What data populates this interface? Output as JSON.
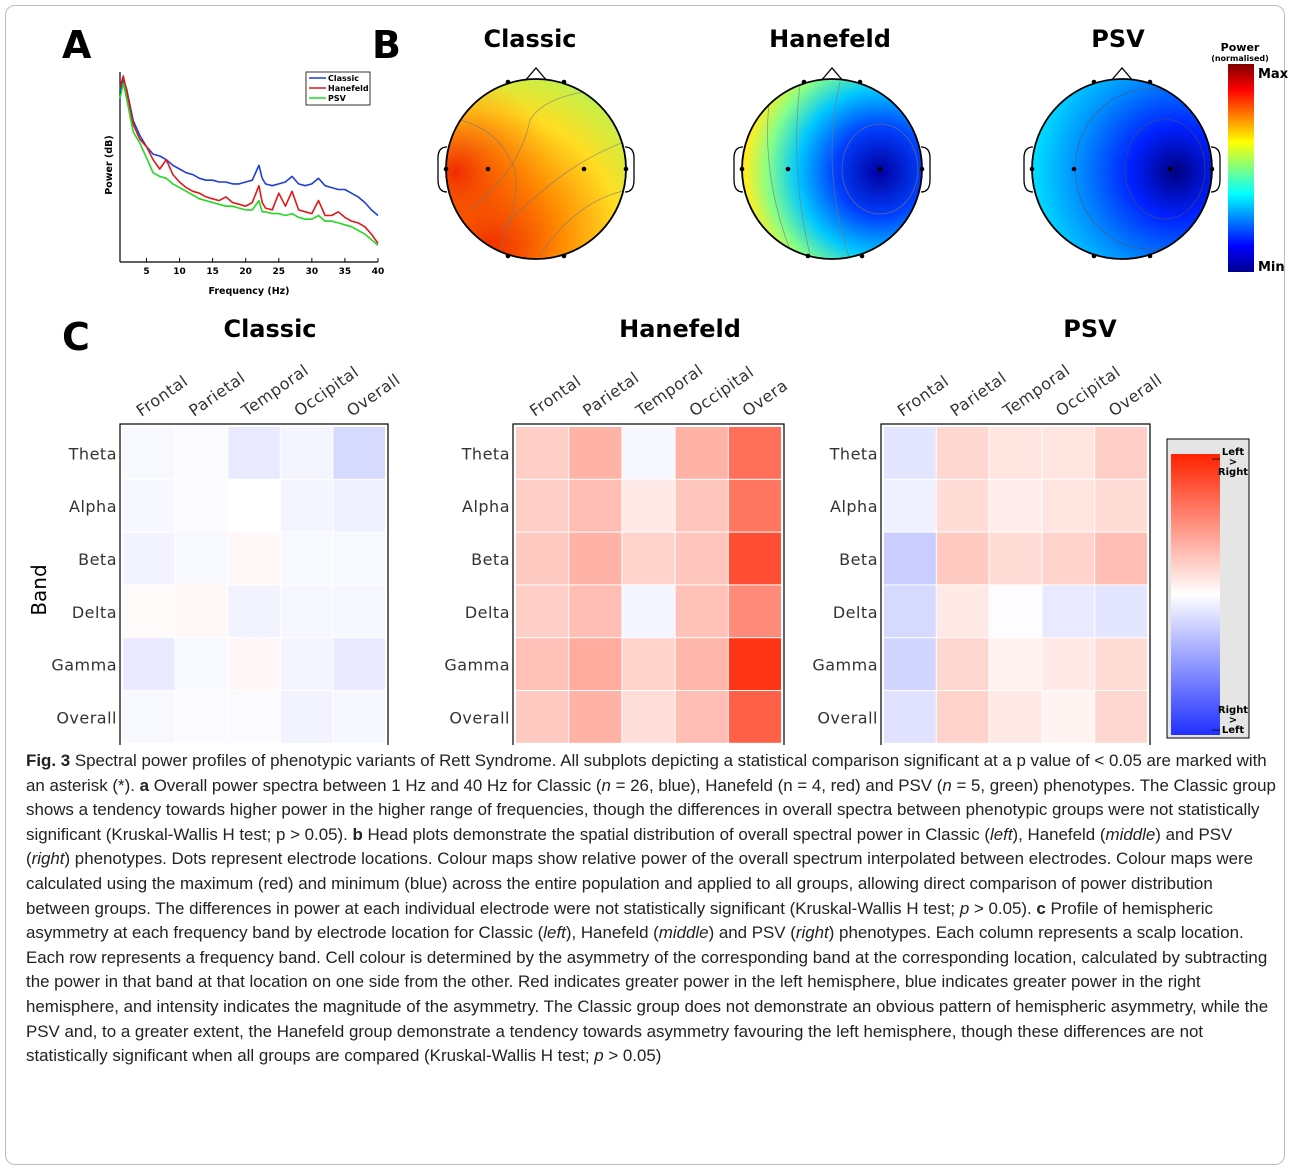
{
  "panel_letters": {
    "A": "A",
    "B": "B",
    "C": "C"
  },
  "spectrum": {
    "ylabel": "Power (dB)",
    "xlabel": "Frequency (Hz)",
    "x_ticks": [
      "5",
      "10",
      "15",
      "20",
      "25",
      "30",
      "35",
      "40"
    ],
    "legend": [
      "Classic",
      "Hanefeld",
      "PSV"
    ],
    "colors": {
      "Classic": "#1f3fd6",
      "Hanefeld": "#e01818",
      "PSV": "#22d822"
    }
  },
  "topo": {
    "titles": [
      "Classic",
      "Hanefeld",
      "PSV"
    ],
    "colorbar_title": "Power",
    "colorbar_subtitle": "(normalised)",
    "colorbar_max": "Max",
    "colorbar_min": "Min"
  },
  "heatmap_text": {
    "titles": [
      "Classic",
      "Hanefeld",
      "PSV"
    ],
    "band_axis_label": "Band",
    "colorbar_top": [
      "Left",
      ">",
      "Right"
    ],
    "colorbar_bottom": [
      "Right",
      ">",
      "Left"
    ]
  },
  "chart_data": [
    {
      "type": "line",
      "panel": "A",
      "xlabel": "Frequency (Hz)",
      "ylabel": "Power (dB)",
      "xlim": [
        1,
        40
      ],
      "legend_position": "top-right",
      "x": [
        1,
        1.5,
        2,
        3,
        4,
        5,
        6,
        7,
        8,
        9,
        10,
        11,
        12,
        13,
        14,
        15,
        16,
        17,
        18,
        19,
        20,
        21,
        22,
        22.5,
        23,
        24,
        25,
        26,
        27,
        28,
        29,
        30,
        31,
        32,
        33,
        34,
        35,
        36,
        37,
        38,
        39,
        40
      ],
      "series": [
        {
          "name": "Classic",
          "values": [
            0.92,
            0.98,
            0.93,
            0.76,
            0.68,
            0.62,
            0.58,
            0.57,
            0.55,
            0.52,
            0.5,
            0.48,
            0.47,
            0.45,
            0.44,
            0.44,
            0.43,
            0.43,
            0.42,
            0.42,
            0.43,
            0.44,
            0.52,
            0.45,
            0.42,
            0.41,
            0.42,
            0.43,
            0.46,
            0.42,
            0.41,
            0.42,
            0.45,
            0.41,
            0.4,
            0.39,
            0.39,
            0.37,
            0.35,
            0.32,
            0.28,
            0.25
          ]
        },
        {
          "name": "Hanefeld",
          "values": [
            0.94,
            1.0,
            0.92,
            0.74,
            0.66,
            0.62,
            0.55,
            0.5,
            0.55,
            0.47,
            0.43,
            0.4,
            0.38,
            0.37,
            0.35,
            0.34,
            0.33,
            0.35,
            0.32,
            0.31,
            0.3,
            0.32,
            0.41,
            0.32,
            0.29,
            0.28,
            0.37,
            0.3,
            0.38,
            0.28,
            0.27,
            0.26,
            0.33,
            0.25,
            0.25,
            0.27,
            0.24,
            0.22,
            0.21,
            0.19,
            0.15,
            0.1
          ]
        },
        {
          "name": "PSV",
          "values": [
            0.88,
            0.96,
            0.88,
            0.7,
            0.64,
            0.56,
            0.48,
            0.46,
            0.45,
            0.42,
            0.4,
            0.38,
            0.36,
            0.34,
            0.33,
            0.32,
            0.31,
            0.3,
            0.3,
            0.29,
            0.28,
            0.28,
            0.33,
            0.27,
            0.27,
            0.26,
            0.26,
            0.25,
            0.26,
            0.24,
            0.23,
            0.23,
            0.25,
            0.22,
            0.22,
            0.21,
            0.2,
            0.19,
            0.17,
            0.15,
            0.12,
            0.09
          ]
        }
      ]
    },
    {
      "type": "heatmap",
      "panel": "C",
      "color_scale": "blue (Right > Left) - white - red (Left > Right)",
      "value_range": [
        -1,
        1
      ],
      "columns": [
        "Frontal",
        "Parietal",
        "Temporal",
        "Occipital",
        "Overall"
      ],
      "hanefeld_columns_as_printed": [
        "Frontal",
        "Parietal",
        "Temporal",
        "Occipital",
        "Overa"
      ],
      "rows": [
        "Theta",
        "Alpha",
        "Beta",
        "Delta",
        "Gamma",
        "Overall"
      ],
      "groups": [
        {
          "name": "Classic",
          "values": [
            [
              -0.03,
              -0.02,
              -0.1,
              -0.05,
              -0.18
            ],
            [
              -0.04,
              -0.02,
              0.0,
              -0.05,
              -0.07
            ],
            [
              -0.06,
              -0.03,
              0.03,
              -0.03,
              -0.03
            ],
            [
              0.02,
              0.03,
              -0.06,
              -0.04,
              -0.04
            ],
            [
              -0.1,
              -0.03,
              0.04,
              -0.05,
              -0.1
            ],
            [
              -0.03,
              -0.02,
              -0.02,
              -0.06,
              -0.04
            ]
          ]
        },
        {
          "name": "Hanefeld",
          "values": [
            [
              0.22,
              0.35,
              -0.04,
              0.35,
              0.65
            ],
            [
              0.22,
              0.3,
              0.1,
              0.26,
              0.62
            ],
            [
              0.24,
              0.35,
              0.2,
              0.26,
              0.8
            ],
            [
              0.22,
              0.3,
              -0.05,
              0.28,
              0.52
            ],
            [
              0.28,
              0.38,
              0.2,
              0.33,
              0.92
            ],
            [
              0.24,
              0.35,
              0.15,
              0.3,
              0.72
            ]
          ]
        },
        {
          "name": "PSV",
          "values": [
            [
              -0.12,
              0.18,
              0.12,
              0.12,
              0.22
            ],
            [
              -0.07,
              0.16,
              0.08,
              0.12,
              0.16
            ],
            [
              -0.24,
              0.24,
              0.16,
              0.2,
              0.3
            ],
            [
              -0.18,
              0.1,
              -0.01,
              -0.1,
              -0.12
            ],
            [
              -0.2,
              0.18,
              0.06,
              0.1,
              0.16
            ],
            [
              -0.14,
              0.2,
              0.1,
              0.05,
              0.18
            ]
          ]
        }
      ]
    }
  ],
  "caption": {
    "label": "Fig. 3",
    "title": "Spectral power profiles of phenotypic variants of Rett Syndrome. All subplots depicting a statistical comparison significant at a p value of < 0.05 are marked with an asterisk (*).",
    "a_label": "a",
    "a_1": "Overall power spectra between 1 Hz and 40 Hz for Classic (",
    "a_n1": "n",
    "a_2": "= 26, blue), Hanefeld (n = 4, red) and PSV (",
    "a_n2": "n",
    "a_3": "= 5, green) phenotypes. The Classic group shows a tendency towards higher power in the higher range of frequencies, though the differences in overall spectra between phenotypic groups were not statistically significant (Kruskal-Wallis H test; p > 0.05).",
    "b_label": "b",
    "b_1": "Head plots demonstrate the spatial distribution of overall spectral power in Classic (",
    "b_left": "left",
    "b_2": "), Hanefeld (",
    "b_middle": "middle",
    "b_3": ") and PSV (",
    "b_right": "right",
    "b_4": ") phenotypes. Dots represent electrode locations. Colour maps show relative power of the overall spectrum interpolated between electrodes. Colour maps were calculated using the maximum (red) and minimum (blue) across the entire population and applied to all groups, allowing direct comparison of power distribution between groups. The differences in power at each individual electrode were not statistically significant (Kruskal-Wallis H test;",
    "b_p": "p",
    "b_5": "> 0.05).",
    "c_label": "c",
    "c_1": "Profile of hemispheric asymmetry at each frequency band by electrode location for Classic (",
    "c_left": "left",
    "c_2": "), Hanefeld (",
    "c_middle": "middle",
    "c_3": ") and PSV (",
    "c_right": "right",
    "c_4": ") phenotypes. Each column represents a scalp location. Each row represents a frequency band. Cell colour is determined by the asymmetry of the corresponding band at the corresponding location, calculated by subtracting the power in that band at that location on one side from the other. Red indicates greater power in the left hemisphere, blue indicates greater power in the right hemisphere, and intensity indicates the magnitude of the asymmetry. The Classic group does not demonstrate an obvious pattern of hemispheric asymmetry, while the PSV and, to a greater extent, the Hanefeld group demonstrate a tendency towards asymmetry favouring the left hemisphere, though these differences are not statistically significant when all groups are compared (Kruskal-Wallis H test;",
    "c_p": "p",
    "c_5": "> 0.05)"
  }
}
